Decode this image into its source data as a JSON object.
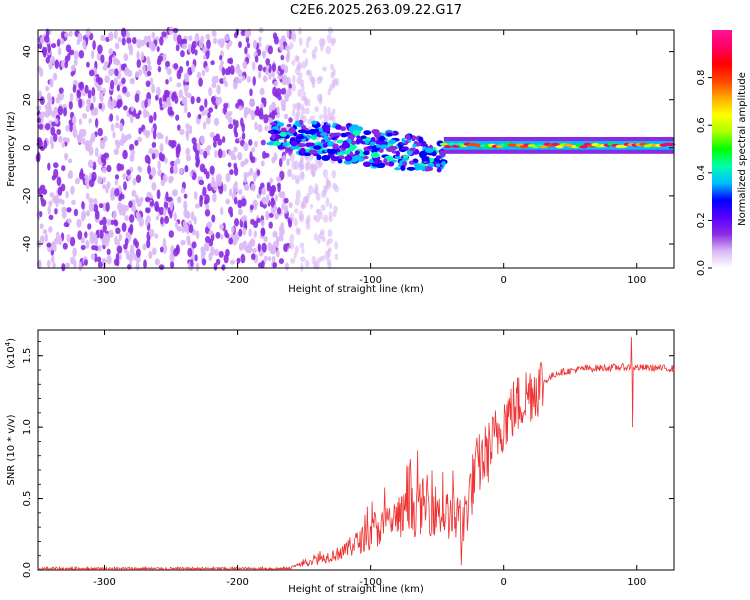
{
  "title": "C2E6.2025.263.09.22.G17",
  "chart_data": [
    {
      "type": "heatmap",
      "name": "spectrogram",
      "xlabel": "Height of straight line (km)",
      "ylabel": "Frequency (Hz)",
      "xlim": [
        -350,
        128
      ],
      "ylim": [
        -50,
        49
      ],
      "x_ticks": [
        -300,
        -200,
        -100,
        0,
        100
      ],
      "y_ticks": [
        -40,
        -20,
        0,
        20,
        40
      ],
      "x_tick_labels": [
        "-300",
        "-200",
        "-100",
        "0",
        "100"
      ],
      "y_tick_labels": [
        "-40",
        "-20",
        "0",
        "20",
        "40"
      ],
      "colorbar": {
        "label": "Normalized spectral amplitude",
        "range": [
          0,
          1
        ],
        "ticks": [
          0.0,
          0.2,
          0.4,
          0.6,
          0.8
        ],
        "tick_labels": [
          "0.0",
          "0.2",
          "0.4",
          "0.6",
          "0.8"
        ],
        "colors": [
          "#ffffff",
          "#d9b8f5",
          "#8a2be2",
          "#5500ff",
          "#0000ff",
          "#00bfff",
          "#00ffaa",
          "#00ff00",
          "#aaff00",
          "#ffff00",
          "#ffaa00",
          "#ff4400",
          "#ff0000",
          "#ff0066",
          "#ff1493"
        ]
      },
      "regions": [
        {
          "desc": "noise",
          "x_range": [
            -350,
            -160
          ],
          "freq_range": [
            -50,
            49
          ],
          "amplitude": 0.1
        },
        {
          "desc": "noise fade",
          "x_range": [
            -160,
            -125
          ],
          "freq_range": [
            -50,
            49
          ],
          "amplitude": 0.03
        },
        {
          "desc": "scattered signal",
          "x_range": [
            -175,
            -45
          ],
          "freq_center": [
            8,
            0,
            -2,
            -8
          ],
          "amplitude": 0.35
        },
        {
          "desc": "carrier tone",
          "x_range": [
            -45,
            128
          ],
          "freq_center": 1,
          "amplitude": 0.9
        }
      ]
    },
    {
      "type": "line",
      "name": "snr",
      "xlabel": "Height of straight line (km)",
      "ylabel": "SNR (10 * v/v)",
      "y_multiplier": "(x10^4)",
      "y_multiplier_base": "(x10",
      "y_multiplier_exp": "4",
      "y_multiplier_close": ")",
      "xlim": [
        -350,
        128
      ],
      "ylim": [
        0,
        1.68
      ],
      "x_ticks": [
        -300,
        -200,
        -100,
        0,
        100
      ],
      "y_ticks": [
        0.0,
        0.5,
        1.0,
        1.5
      ],
      "x_tick_labels": [
        "-300",
        "-200",
        "-100",
        "0",
        "100"
      ],
      "y_tick_labels": [
        "0.0",
        "0.5",
        "1.0",
        "1.5"
      ],
      "color": "#ee3333",
      "series_points": [
        {
          "x": -350,
          "y": 0.01
        },
        {
          "x": -160,
          "y": 0.01
        },
        {
          "x": -120,
          "y": 0.07
        },
        {
          "x": -100,
          "y": 0.14
        },
        {
          "x": -80,
          "y": 0.2
        },
        {
          "x": -60,
          "y": 0.25
        },
        {
          "x": -45,
          "y": 0.22
        },
        {
          "x": -32,
          "y": 0.18
        },
        {
          "x": -28,
          "y": 0.45
        },
        {
          "x": -20,
          "y": 0.72
        },
        {
          "x": -10,
          "y": 0.85
        },
        {
          "x": 0,
          "y": 1.05
        },
        {
          "x": 20,
          "y": 1.25
        },
        {
          "x": 40,
          "y": 1.38
        },
        {
          "x": 60,
          "y": 1.41
        },
        {
          "x": 90,
          "y": 1.42
        },
        {
          "x": 128,
          "y": 1.41
        }
      ],
      "spikes": [
        {
          "x": 96,
          "y": 1.63
        },
        {
          "x": 97,
          "y": 1.0
        }
      ]
    }
  ]
}
